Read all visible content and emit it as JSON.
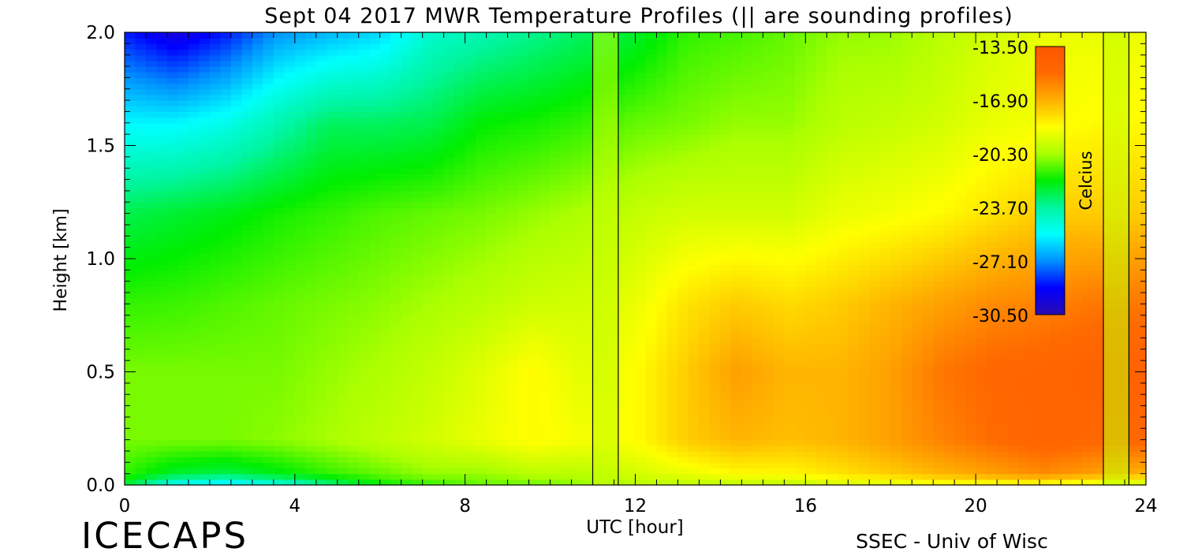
{
  "chart_data": {
    "type": "heatmap",
    "title": "Sept 04 2017 MWR Temperature Profiles (|| are sounding profiles)",
    "xlabel": "UTC [hour]",
    "ylabel": "Height [km]",
    "xlim": [
      0,
      24
    ],
    "ylim": [
      0.0,
      2.0
    ],
    "x_ticks": [
      "0",
      "4",
      "8",
      "12",
      "16",
      "20",
      "24"
    ],
    "y_ticks": [
      "0.0",
      "0.5",
      "1.0",
      "1.5",
      "2.0"
    ],
    "colorbar": {
      "label": "Celcius",
      "min": -30.5,
      "max": -13.5,
      "ticks": [
        "-13.50",
        "-16.90",
        "-20.30",
        "-23.70",
        "-27.10",
        "-30.50"
      ]
    },
    "sounding_profiles_utc": [
      11.0,
      11.6,
      23.0,
      23.6
    ],
    "grid_hours": [
      0,
      1.2,
      2.4,
      3.6,
      4.8,
      6,
      7.2,
      8.4,
      9.6,
      10.8,
      12,
      13.2,
      14.4,
      15.6,
      16.8,
      18,
      19.2,
      20.4,
      21.6,
      22.8,
      24
    ],
    "grid_heights_km": [
      0.0,
      0.05,
      0.2,
      0.5,
      0.8,
      1.2,
      1.6,
      2.0
    ],
    "temperature_c": [
      [
        -22.5,
        -25.5,
        -26.0,
        -25.0,
        -23.5,
        -22.0,
        -21.5,
        -21.0,
        -21.0,
        -20.5,
        -20.0,
        -20.0,
        -20.0,
        -20.0,
        -19.5,
        -19.5,
        -19.0,
        -19.0,
        -19.0,
        -19.5,
        -20.0
      ],
      [
        -21.5,
        -22.5,
        -22.8,
        -22.2,
        -21.5,
        -21.0,
        -20.5,
        -20.5,
        -20.0,
        -20.0,
        -19.5,
        -19.0,
        -18.5,
        -18.5,
        -18.0,
        -17.5,
        -17.0,
        -16.5,
        -16.0,
        -16.5,
        -17.0
      ],
      [
        -20.8,
        -20.8,
        -20.8,
        -20.6,
        -20.3,
        -19.9,
        -19.5,
        -19.0,
        -18.5,
        -18.8,
        -18.6,
        -17.5,
        -17.0,
        -17.2,
        -17.0,
        -16.5,
        -15.8,
        -15.2,
        -14.8,
        -15.0,
        -15.0
      ],
      [
        -20.8,
        -20.8,
        -20.8,
        -20.8,
        -20.5,
        -20.2,
        -19.8,
        -19.2,
        -18.5,
        -19.2,
        -18.6,
        -17.5,
        -16.5,
        -17.0,
        -17.0,
        -16.5,
        -15.5,
        -15.0,
        -14.8,
        -14.5,
        -14.5
      ],
      [
        -21.5,
        -21.4,
        -21.2,
        -21.0,
        -20.8,
        -20.6,
        -20.3,
        -20.0,
        -19.6,
        -19.5,
        -19.0,
        -18.0,
        -17.5,
        -17.8,
        -17.5,
        -17.0,
        -16.5,
        -16.0,
        -15.8,
        -15.5,
        -15.5
      ],
      [
        -22.8,
        -22.5,
        -22.2,
        -21.8,
        -21.5,
        -21.2,
        -21.0,
        -20.8,
        -20.5,
        -20.2,
        -19.8,
        -19.5,
        -19.5,
        -19.5,
        -19.0,
        -18.8,
        -18.5,
        -18.0,
        -17.5,
        -17.5,
        -17.5
      ],
      [
        -25.5,
        -25.5,
        -25.0,
        -24.0,
        -23.0,
        -23.0,
        -22.8,
        -22.0,
        -21.8,
        -21.5,
        -21.0,
        -20.8,
        -20.5,
        -20.5,
        -20.0,
        -19.8,
        -19.5,
        -19.0,
        -18.8,
        -18.5,
        -18.5
      ],
      [
        -28.5,
        -29.5,
        -28.5,
        -27.0,
        -26.5,
        -26.0,
        -24.5,
        -24.0,
        -23.5,
        -23.0,
        -22.5,
        -21.5,
        -21.3,
        -21.0,
        -20.5,
        -20.5,
        -20.0,
        -19.5,
        -19.0,
        -19.0,
        -19.0
      ]
    ]
  },
  "branding": {
    "project": "ICECAPS",
    "credit": "SSEC - Univ of Wisc"
  },
  "colors": {
    "scale": [
      "#2a0ab0",
      "#0000ff",
      "#0090ff",
      "#00ffff",
      "#00f5a0",
      "#00ee00",
      "#aaff00",
      "#ffff00",
      "#ffb000",
      "#ff6a00",
      "#ff5500"
    ]
  }
}
